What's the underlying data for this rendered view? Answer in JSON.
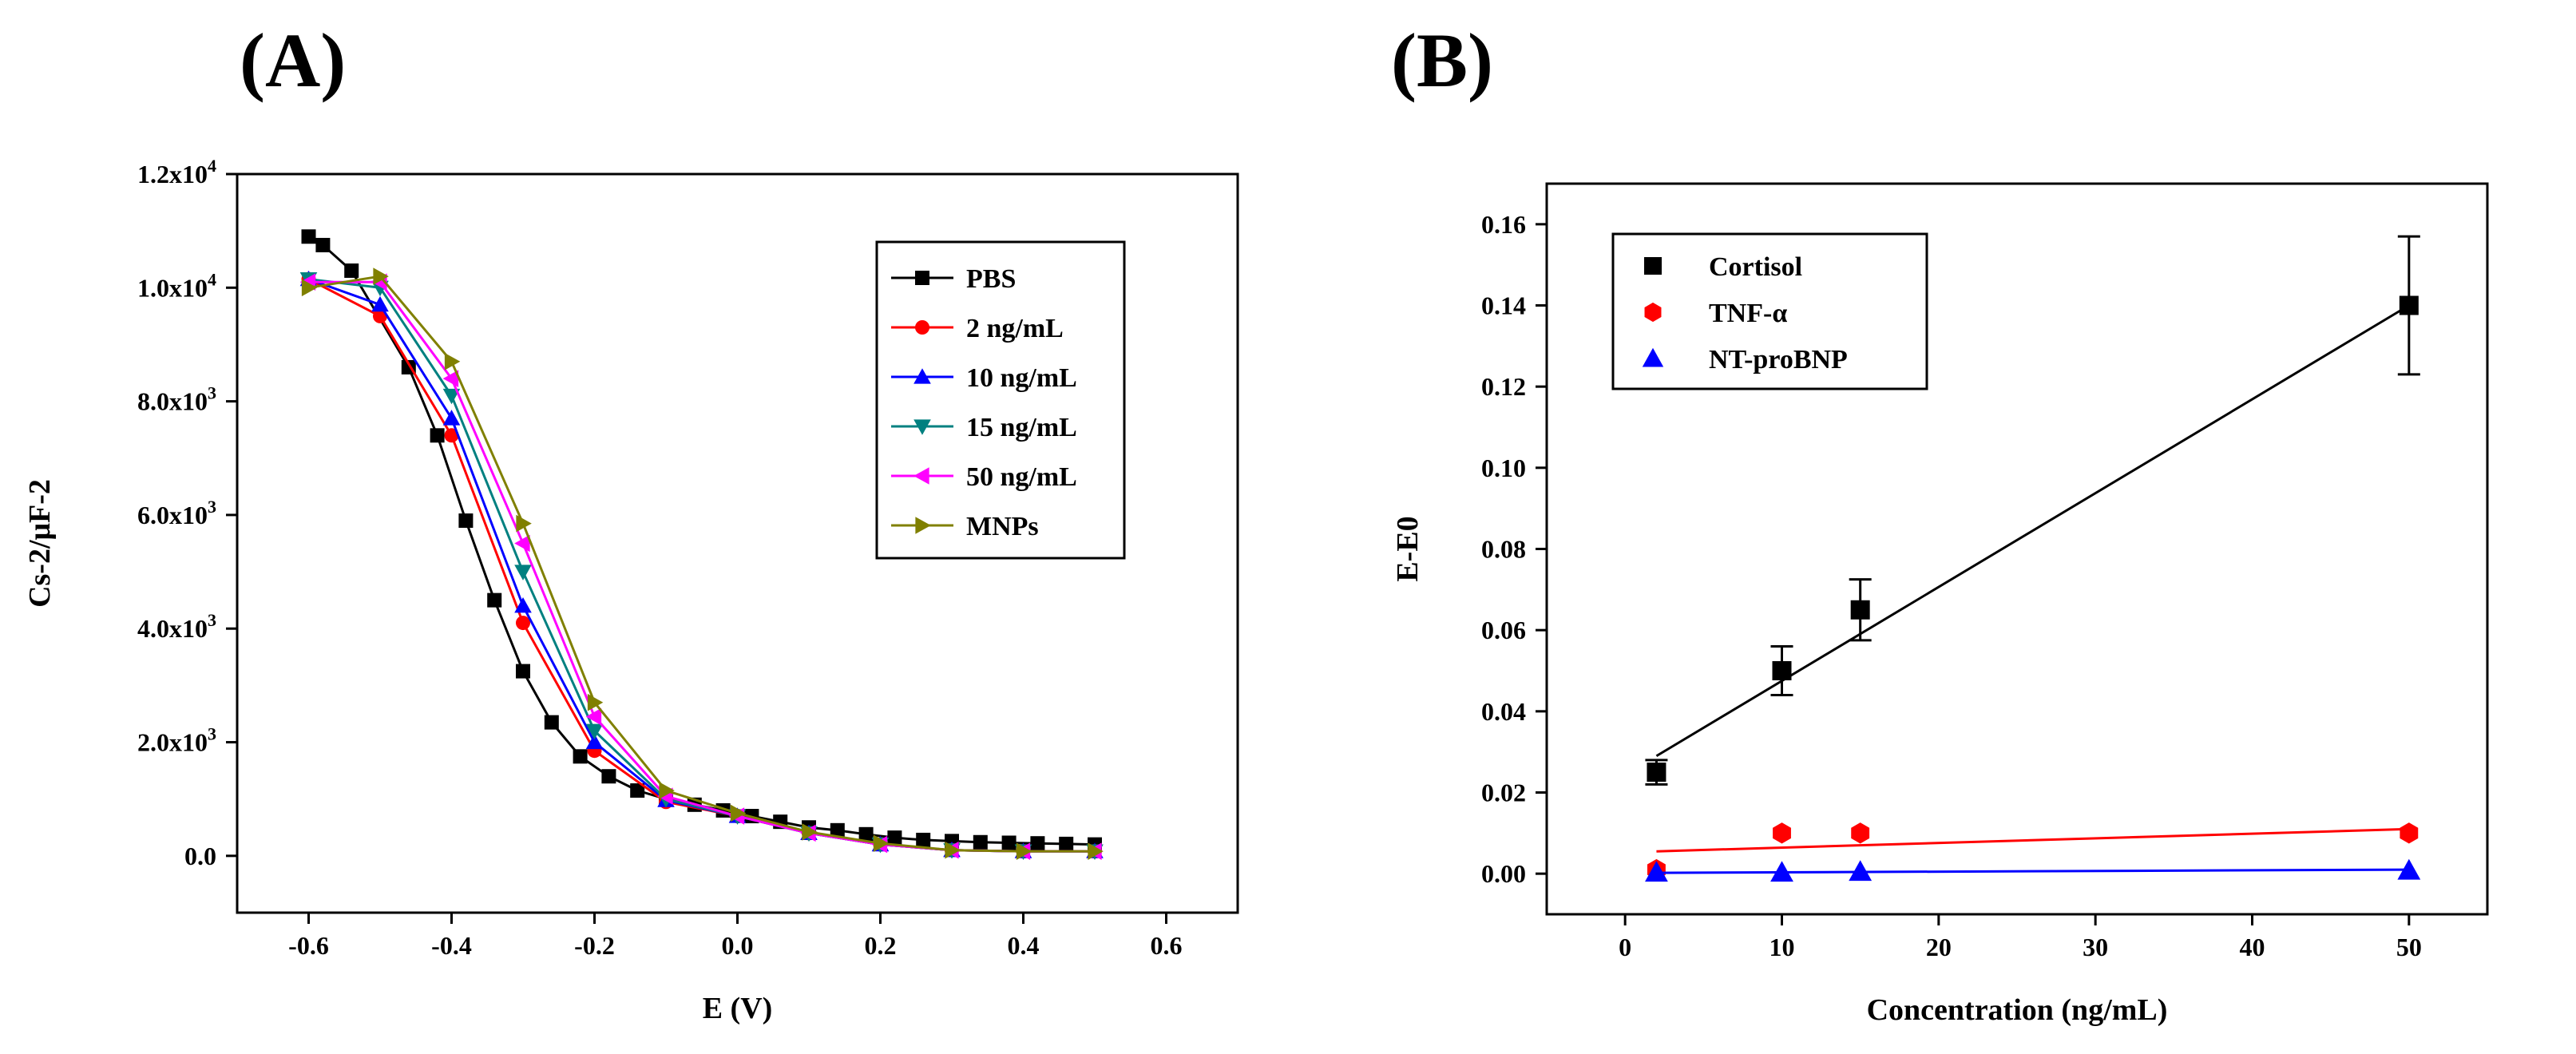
{
  "panels": {
    "a_label": "(A)",
    "b_label": "(B)"
  },
  "chart_data": [
    {
      "type": "line",
      "xlabel": "E (V)",
      "ylabel": "Cs-2/μF-2",
      "xlim": [
        -0.7,
        0.7
      ],
      "ylim": [
        -1000,
        12000
      ],
      "xticks": [
        {
          "v": -0.6,
          "label": "-0.6"
        },
        {
          "v": -0.4,
          "label": "-0.4"
        },
        {
          "v": -0.2,
          "label": "-0.2"
        },
        {
          "v": 0.0,
          "label": "0.0"
        },
        {
          "v": 0.2,
          "label": "0.2"
        },
        {
          "v": 0.4,
          "label": "0.4"
        },
        {
          "v": 0.6,
          "label": "0.6"
        }
      ],
      "yticks": [
        {
          "v": 0,
          "label": "0.0"
        },
        {
          "v": 2000,
          "mant": "2.0x10",
          "exp": "3"
        },
        {
          "v": 4000,
          "mant": "4.0x10",
          "exp": "3"
        },
        {
          "v": 6000,
          "mant": "6.0x10",
          "exp": "3"
        },
        {
          "v": 8000,
          "mant": "8.0x10",
          "exp": "3"
        },
        {
          "v": 10000,
          "mant": "1.0x10",
          "exp": "4"
        },
        {
          "v": 12000,
          "mant": "1.2x10",
          "exp": "4"
        }
      ],
      "legend_position": "top-right",
      "series": [
        {
          "name": "PBS",
          "color": "#000000",
          "marker": "square",
          "x": [
            -0.6,
            -0.58,
            -0.54,
            -0.46,
            -0.42,
            -0.38,
            -0.34,
            -0.3,
            -0.26,
            -0.22,
            -0.18,
            -0.14,
            -0.1,
            -0.06,
            -0.02,
            0.02,
            0.06,
            0.1,
            0.14,
            0.18,
            0.22,
            0.26,
            0.3,
            0.34,
            0.38,
            0.42,
            0.46,
            0.5
          ],
          "y": [
            10900,
            10750,
            10300,
            8600,
            7400,
            5900,
            4500,
            3250,
            2350,
            1750,
            1400,
            1150,
            1000,
            900,
            800,
            700,
            600,
            500,
            450,
            380,
            320,
            280,
            260,
            240,
            230,
            220,
            210,
            200
          ]
        },
        {
          "name": "2 ng/mL",
          "color": "#ff0000",
          "marker": "circle",
          "x": [
            -0.6,
            -0.5,
            -0.4,
            -0.3,
            -0.2,
            -0.1,
            0.0,
            0.1,
            0.2,
            0.3,
            0.4,
            0.5
          ],
          "y": [
            10150,
            9500,
            7400,
            4100,
            1850,
            950,
            700,
            400,
            200,
            100,
            80,
            80
          ]
        },
        {
          "name": "10 ng/mL",
          "color": "#0000ff",
          "marker": "triangle-up",
          "x": [
            -0.6,
            -0.5,
            -0.4,
            -0.3,
            -0.2,
            -0.1,
            0.0,
            0.1,
            0.2,
            0.3,
            0.4,
            0.5
          ],
          "y": [
            10150,
            9700,
            7700,
            4400,
            2000,
            980,
            700,
            400,
            200,
            100,
            80,
            80
          ]
        },
        {
          "name": "15 ng/mL",
          "color": "#008080",
          "marker": "triangle-down",
          "x": [
            -0.6,
            -0.5,
            -0.4,
            -0.3,
            -0.2,
            -0.1,
            0.0,
            0.1,
            0.2,
            0.3,
            0.4,
            0.5
          ],
          "y": [
            10150,
            10000,
            8100,
            5000,
            2200,
            1000,
            700,
            400,
            200,
            100,
            80,
            80
          ]
        },
        {
          "name": "50 ng/mL",
          "color": "#ff00ff",
          "marker": "triangle-left",
          "x": [
            -0.6,
            -0.5,
            -0.4,
            -0.3,
            -0.2,
            -0.1,
            0.0,
            0.1,
            0.2,
            0.3,
            0.4,
            0.5
          ],
          "y": [
            10100,
            10100,
            8400,
            5500,
            2450,
            1050,
            700,
            400,
            200,
            100,
            80,
            80
          ]
        },
        {
          "name": "MNPs",
          "color": "#808000",
          "marker": "triangle-right",
          "x": [
            -0.6,
            -0.5,
            -0.4,
            -0.3,
            -0.2,
            -0.1,
            0.0,
            0.1,
            0.2,
            0.3,
            0.4,
            0.5
          ],
          "y": [
            10000,
            10200,
            8700,
            5850,
            2700,
            1150,
            750,
            420,
            220,
            100,
            80,
            80
          ]
        }
      ]
    },
    {
      "type": "scatter",
      "xlabel": "Concentration (ng/mL)",
      "ylabel": "E-E0",
      "xlim": [
        -5,
        55
      ],
      "ylim": [
        -0.01,
        0.17
      ],
      "xticks": [
        {
          "v": 0,
          "label": "0"
        },
        {
          "v": 10,
          "label": "10"
        },
        {
          "v": 20,
          "label": "20"
        },
        {
          "v": 30,
          "label": "30"
        },
        {
          "v": 40,
          "label": "40"
        },
        {
          "v": 50,
          "label": "50"
        }
      ],
      "yticks": [
        {
          "v": 0.0,
          "label": "0.00"
        },
        {
          "v": 0.02,
          "label": "0.02"
        },
        {
          "v": 0.04,
          "label": "0.04"
        },
        {
          "v": 0.06,
          "label": "0.06"
        },
        {
          "v": 0.08,
          "label": "0.08"
        },
        {
          "v": 0.1,
          "label": "0.10"
        },
        {
          "v": 0.12,
          "label": "0.12"
        },
        {
          "v": 0.14,
          "label": "0.14"
        },
        {
          "v": 0.16,
          "label": "0.16"
        }
      ],
      "legend_position": "top-left",
      "series": [
        {
          "name": "Cortisol",
          "color": "#000000",
          "marker": "square",
          "x": [
            2,
            10,
            15,
            50
          ],
          "y": [
            0.025,
            0.05,
            0.065,
            0.14
          ],
          "err": [
            0.003,
            0.006,
            0.0075,
            0.017
          ],
          "fit": {
            "x": [
              2,
              50
            ],
            "y": [
              0.029,
              0.14
            ]
          }
        },
        {
          "name": "TNF-α",
          "color": "#ff0000",
          "marker": "hexagon",
          "x": [
            2,
            10,
            15,
            50
          ],
          "y": [
            0.001,
            0.01,
            0.01,
            0.01
          ],
          "fit": {
            "x": [
              2,
              50
            ],
            "y": [
              0.0055,
              0.011
            ]
          }
        },
        {
          "name": "NT-proBNP",
          "color": "#0000ff",
          "marker": "triangle-up",
          "x": [
            2,
            10,
            15,
            50
          ],
          "y": [
            0.0003,
            0.0003,
            0.0005,
            0.0008
          ],
          "fit": {
            "x": [
              2,
              50
            ],
            "y": [
              0.0002,
              0.001
            ]
          }
        }
      ]
    }
  ]
}
